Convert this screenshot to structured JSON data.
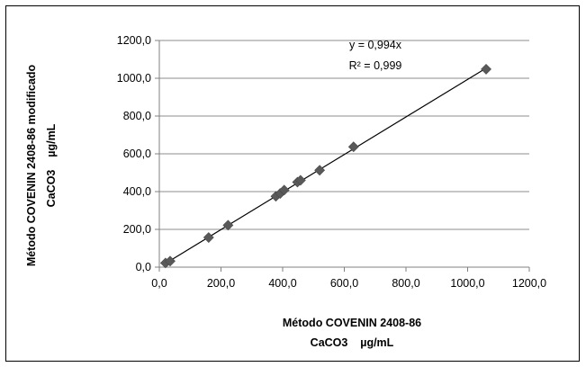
{
  "chart_data": {
    "type": "scatter",
    "xlabel_lines": [
      "Método COVENIN 2408-86",
      "CaCO3    µg/mL"
    ],
    "ylabel_lines": [
      "Método COVENIN 2408-86 modificado",
      "CaCO3    µg/mL"
    ],
    "xlim": [
      0,
      1200
    ],
    "ylim": [
      0,
      1200
    ],
    "xticks": [
      "0,0",
      "200,0",
      "400,0",
      "600,0",
      "800,0",
      "1000,0",
      "1200,0"
    ],
    "yticks": [
      "0,0",
      "200,0",
      "400,0",
      "600,0",
      "800,0",
      "1000,0",
      "1200,0"
    ],
    "tick_values": [
      0,
      200,
      400,
      600,
      800,
      1000,
      1200
    ],
    "grid": "horizontal",
    "legend": "none",
    "points": [
      {
        "x": 20,
        "y": 22
      },
      {
        "x": 35,
        "y": 32
      },
      {
        "x": 160,
        "y": 157
      },
      {
        "x": 223,
        "y": 222
      },
      {
        "x": 378,
        "y": 375
      },
      {
        "x": 392,
        "y": 390
      },
      {
        "x": 405,
        "y": 408
      },
      {
        "x": 448,
        "y": 450
      },
      {
        "x": 458,
        "y": 460
      },
      {
        "x": 520,
        "y": 513
      },
      {
        "x": 630,
        "y": 637
      },
      {
        "x": 1060,
        "y": 1048
      }
    ],
    "trendline": {
      "type": "linear",
      "slope": 0.994,
      "x_range": [
        20,
        1060
      ]
    },
    "equation_label": "y = 0,994x",
    "r2_label": "R² = 0,999",
    "marker_color": "#595959",
    "line_color": "#000000",
    "grid_color": "#8c8c8c"
  }
}
